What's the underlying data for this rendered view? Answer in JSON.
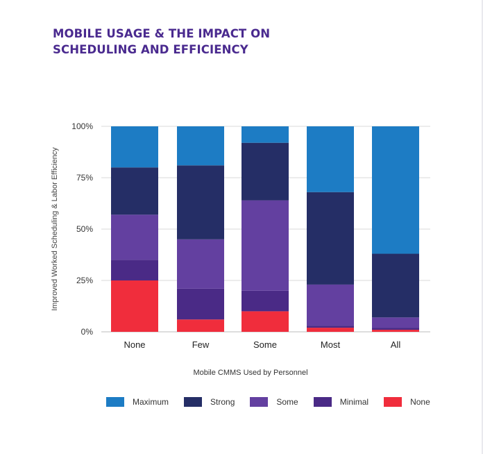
{
  "title_lines": [
    "MOBILE USAGE & THE IMPACT ON",
    "SCHEDULING AND EFFICIENCY"
  ],
  "colors": {
    "Maximum": "#1d7cc4",
    "Strong": "#252e66",
    "Some": "#6340a0",
    "Minimal": "#4a2a86",
    "None": "#f02d3c",
    "grid": "#d9d9d9",
    "title": "#4a2a8f"
  },
  "chart_data": {
    "type": "bar",
    "stacked": true,
    "title": "MOBILE USAGE & THE IMPACT ON SCHEDULING AND EFFICIENCY",
    "xlabel": "Mobile CMMS Used by Personnel",
    "ylabel": "Improved Worked Scheduling & Labor Efficiency",
    "ylim": [
      0,
      100
    ],
    "yticks": [
      0,
      25,
      50,
      75,
      100
    ],
    "ytick_labels": [
      "0%",
      "25%",
      "50%",
      "75%",
      "100%"
    ],
    "categories": [
      "None",
      "Few",
      "Some",
      "Most",
      "All"
    ],
    "series": [
      {
        "name": "None",
        "values": [
          25,
          6,
          10,
          2,
          1
        ]
      },
      {
        "name": "Minimal",
        "values": [
          10,
          15,
          10,
          1,
          1
        ]
      },
      {
        "name": "Some",
        "values": [
          22,
          24,
          44,
          20,
          5
        ]
      },
      {
        "name": "Strong",
        "values": [
          23,
          36,
          28,
          45,
          31
        ]
      },
      {
        "name": "Maximum",
        "values": [
          20,
          19,
          8,
          32,
          62
        ]
      }
    ],
    "legend": [
      "Maximum",
      "Strong",
      "Some",
      "Minimal",
      "None"
    ],
    "legend_position": "bottom"
  }
}
